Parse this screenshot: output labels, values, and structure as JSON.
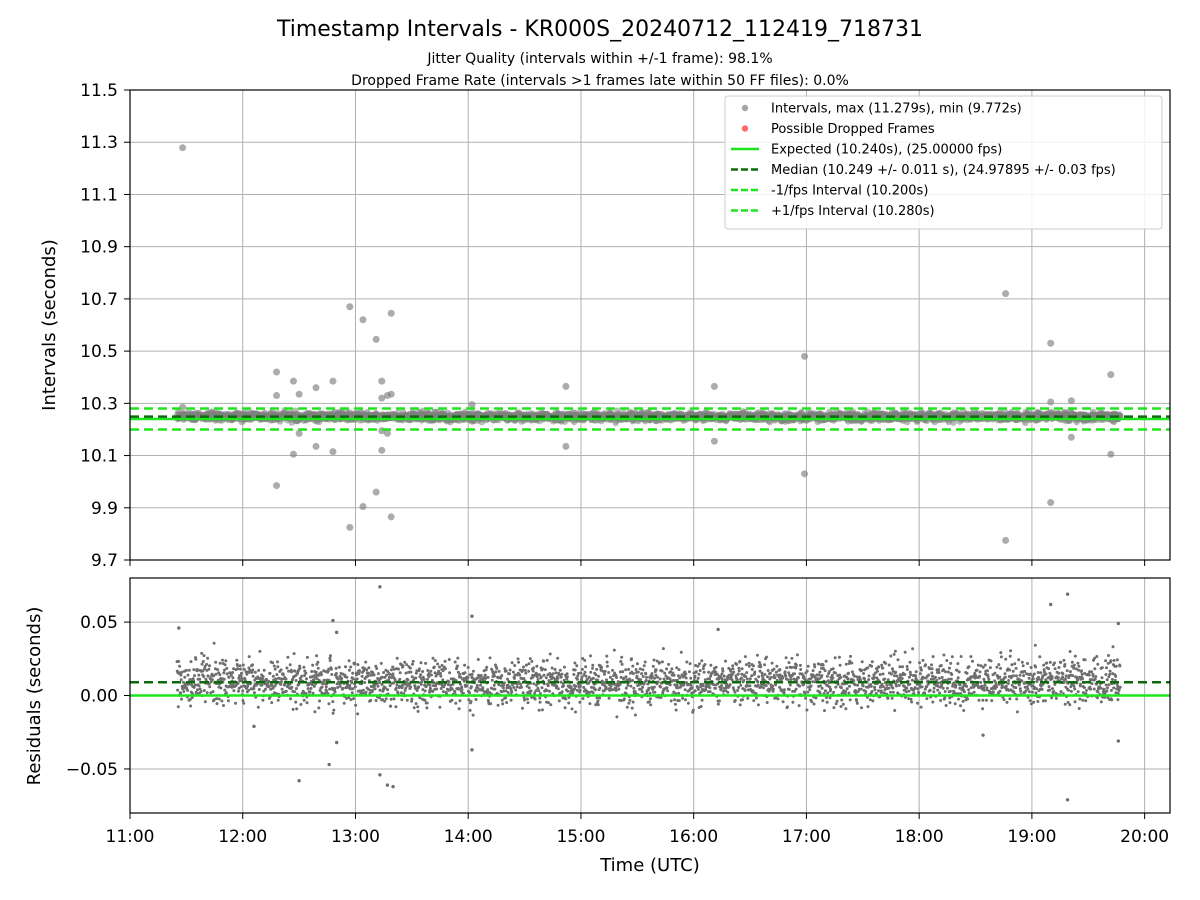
{
  "chart_data": {
    "type": "scatter",
    "title": "Timestamp Intervals - KR000S_20240712_112419_718731",
    "subtitle_lines": [
      "Jitter Quality (intervals within +/-1 frame): 98.1%",
      "Dropped Frame Rate (intervals >1 frames late within 50 FF files): 0.0%"
    ],
    "xlabel": "Time (UTC)",
    "x_ticks": [
      "11:00",
      "12:00",
      "13:00",
      "14:00",
      "15:00",
      "16:00",
      "17:00",
      "18:00",
      "19:00",
      "20:00"
    ],
    "grid": true,
    "legend_position": "top-right",
    "colors": {
      "points": "#808080",
      "dropped": "#ff4a4a",
      "expected": "#1ee61e",
      "median": "#0b6b0b",
      "interval": "#1ee61e"
    },
    "top_panel": {
      "ylabel": "Intervals (seconds)",
      "ylim": [
        9.7,
        11.5
      ],
      "y_ticks": [
        "9.7",
        "9.9",
        "10.1",
        "10.3",
        "10.5",
        "10.7",
        "10.9",
        "11.1",
        "11.3",
        "11.5"
      ],
      "expected": 10.24,
      "median": 10.249,
      "minus_1fps": 10.2,
      "plus_1fps": 10.28,
      "legend": [
        {
          "label": "Intervals, max (11.279s), min (9.772s)",
          "style": "dot",
          "color": "#a6a6a6"
        },
        {
          "label": "Possible Dropped Frames",
          "style": "dot",
          "color": "#ff6b6b"
        },
        {
          "label": "Expected (10.240s), (25.00000 fps)",
          "style": "solid",
          "color": "#1ee61e"
        },
        {
          "label": "Median (10.249 +/- 0.011 s), (24.97895 +/- 0.03 fps)",
          "style": "dashed",
          "color": "#0b6b0b"
        },
        {
          "label": "-1/fps Interval (10.200s)",
          "style": "dashed",
          "color": "#1ee61e"
        },
        {
          "label": "+1/fps Interval (10.280s)",
          "style": "dashed",
          "color": "#1ee61e"
        }
      ],
      "outliers": [
        [
          "11:28",
          11.279
        ],
        [
          "11:28",
          10.285
        ],
        [
          "12:18",
          10.42
        ],
        [
          "12:18",
          10.33
        ],
        [
          "12:18",
          9.985
        ],
        [
          "12:27",
          10.385
        ],
        [
          "12:27",
          10.105
        ],
        [
          "12:30",
          10.335
        ],
        [
          "12:30",
          10.185
        ],
        [
          "12:39",
          10.36
        ],
        [
          "12:39",
          10.135
        ],
        [
          "12:48",
          10.385
        ],
        [
          "12:48",
          10.115
        ],
        [
          "12:57",
          10.67
        ],
        [
          "12:57",
          9.825
        ],
        [
          "13:04",
          10.62
        ],
        [
          "13:04",
          9.905
        ],
        [
          "13:11",
          10.545
        ],
        [
          "13:11",
          9.96
        ],
        [
          "13:14",
          10.385
        ],
        [
          "13:14",
          10.32
        ],
        [
          "13:14",
          10.12
        ],
        [
          "13:14",
          10.195
        ],
        [
          "13:17",
          10.33
        ],
        [
          "13:17",
          10.185
        ],
        [
          "13:19",
          10.645
        ],
        [
          "13:19",
          10.335
        ],
        [
          "13:19",
          9.865
        ],
        [
          "14:02",
          10.295
        ],
        [
          "14:52",
          10.365
        ],
        [
          "14:52",
          10.135
        ],
        [
          "16:11",
          10.365
        ],
        [
          "16:11",
          10.155
        ],
        [
          "16:59",
          10.48
        ],
        [
          "16:59",
          10.03
        ],
        [
          "18:46",
          10.72
        ],
        [
          "18:46",
          9.775
        ],
        [
          "19:10",
          10.53
        ],
        [
          "19:10",
          10.305
        ],
        [
          "19:10",
          9.92
        ],
        [
          "19:21",
          10.31
        ],
        [
          "19:21",
          10.17
        ],
        [
          "19:42",
          10.41
        ],
        [
          "19:42",
          10.105
        ]
      ]
    },
    "bottom_panel": {
      "ylabel": "Residuals (seconds)",
      "ylim": [
        -0.08,
        0.08
      ],
      "y_ticks": [
        "−0.05",
        "0.00",
        "0.05"
      ],
      "zero_line": 0.0,
      "median_offset": 0.009,
      "outliers": [
        [
          "11:26",
          0.046
        ],
        [
          "12:48",
          0.051
        ],
        [
          "12:50",
          0.043
        ],
        [
          "12:46",
          -0.047
        ],
        [
          "12:50",
          -0.032
        ],
        [
          "12:30",
          -0.058
        ],
        [
          "13:13",
          0.074
        ],
        [
          "13:13",
          -0.054
        ],
        [
          "13:17",
          -0.061
        ],
        [
          "13:20",
          -0.062
        ],
        [
          "14:02",
          0.054
        ],
        [
          "14:02",
          -0.037
        ],
        [
          "16:13",
          0.045
        ],
        [
          "19:10",
          0.062
        ],
        [
          "19:19",
          0.069
        ],
        [
          "19:19",
          -0.071
        ],
        [
          "19:46",
          0.049
        ],
        [
          "19:46",
          -0.031
        ],
        [
          "18:34",
          -0.027
        ],
        [
          "12:06",
          -0.021
        ]
      ]
    }
  }
}
